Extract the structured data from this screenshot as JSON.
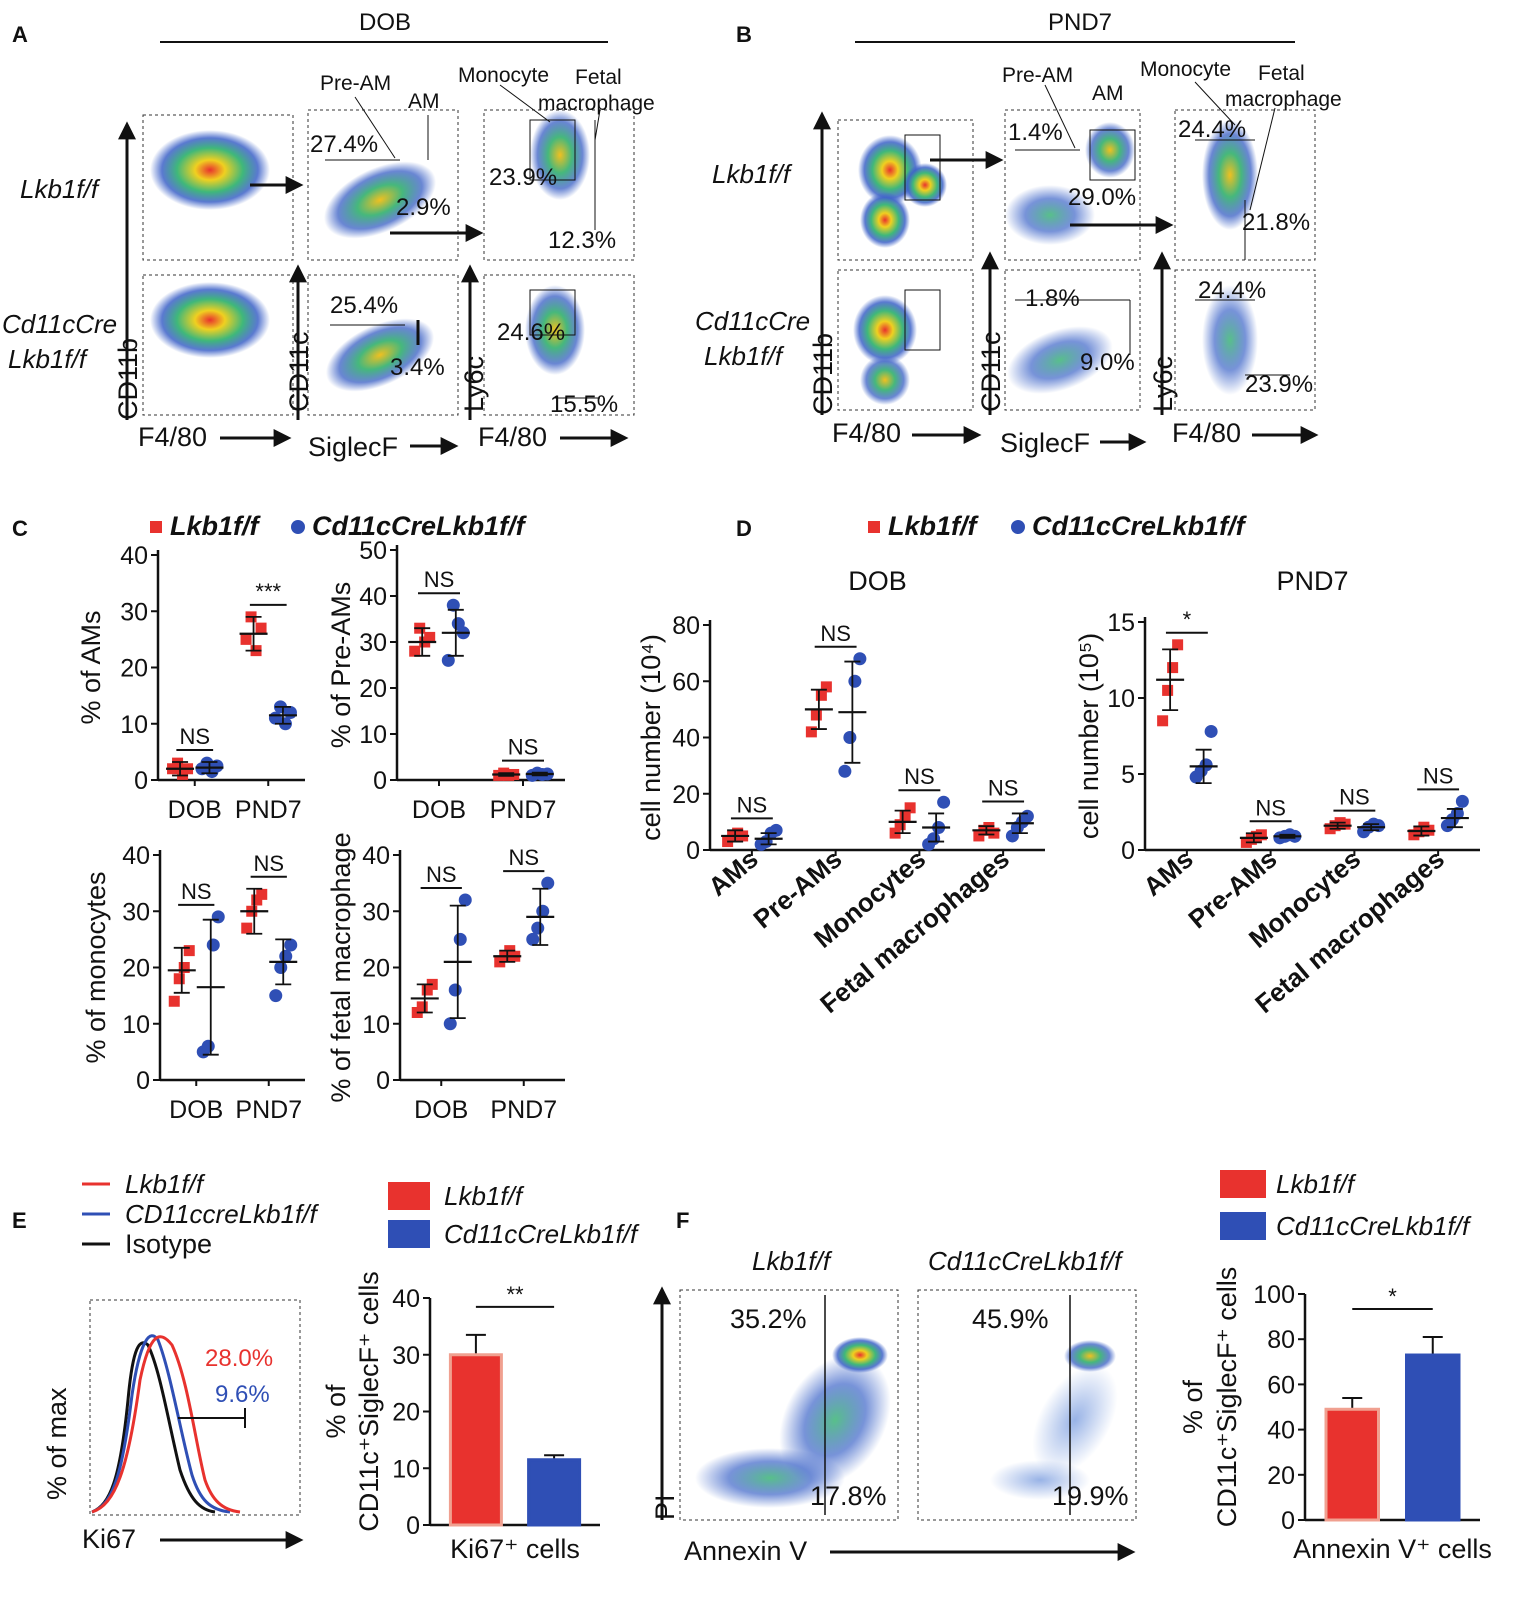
{
  "panel_labels": {
    "a": "A",
    "b": "B",
    "c": "C",
    "d": "D",
    "e": "E",
    "f": "F"
  },
  "panel_a": {
    "title": "DOB",
    "row1_label": "Lkb1f/f",
    "row2_label_line1": "Cd11cCre",
    "row2_label_line2": "Lkb1f/f",
    "axes": {
      "x1": "F4/80",
      "y1": "CD11b",
      "x2": "SiglecF",
      "y2": "CD11c",
      "x3": "F4/80",
      "y3": "Ly6c"
    },
    "gates": {
      "pre_am": "Pre-AM",
      "am": "AM",
      "monocyte": "Monocyte",
      "fetal_line1": "Fetal",
      "fetal_line2": "macrophage"
    },
    "row1": {
      "pre_am_pct": "27.4%",
      "am_pct": "2.9%",
      "mono_pct": "23.9%",
      "fetal_pct": "12.3%"
    },
    "row2": {
      "pre_am_pct": "25.4%",
      "am_pct": "3.4%",
      "mono_pct": "24.6%",
      "fetal_pct": "15.5%"
    }
  },
  "panel_b": {
    "title": "PND7",
    "row1_label": "Lkb1f/f",
    "row2_label_line1": "Cd11cCre",
    "row2_label_line2": "Lkb1f/f",
    "axes": {
      "x1": "F4/80",
      "y1": "CD11b",
      "x2": "SiglecF",
      "y2": "CD11c",
      "x3": "F4/80",
      "y3": "Ly6c"
    },
    "gates": {
      "pre_am": "Pre-AM",
      "am": "AM",
      "monocyte": "Monocyte",
      "fetal_line1": "Fetal",
      "fetal_line2": "macrophage"
    },
    "row1": {
      "pre_am_pct": "1.4%",
      "am_pct": "29.0%",
      "mono_pct": "24.4%",
      "fetal_pct": "21.8%"
    },
    "row2": {
      "pre_am_pct": "1.8%",
      "am_pct": "9.0%",
      "mono_pct": "24.4%",
      "fetal_pct": "23.9%"
    }
  },
  "legend": {
    "wt": "Lkb1f/f",
    "ko": "Cd11cCreLkb1f/f",
    "ko_e": "CD11ccreLkb1f/f",
    "isotype": "Isotype"
  },
  "colors": {
    "wt": "#e8322e",
    "ko": "#2f4fb5",
    "isotype": "#111111"
  },
  "chart_data": [
    {
      "id": "c1",
      "type": "scatter",
      "ylabel": "% of AMs",
      "ylim": [
        0,
        40
      ],
      "yticks": [
        0,
        10,
        20,
        30,
        40
      ],
      "categories": [
        "DOB",
        "PND7"
      ],
      "series": [
        {
          "name": "Lkb1f/f",
          "points": [
            [
              2,
              3,
              1,
              2
            ],
            [
              25,
              29,
              23,
              27
            ]
          ],
          "mean": [
            2,
            26
          ],
          "sd": [
            1.2,
            3
          ]
        },
        {
          "name": "Cd11cCreLkb1f/f",
          "points": [
            [
              2,
              3,
              1.5,
              2.5
            ],
            [
              11,
              13,
              10,
              12
            ]
          ],
          "mean": [
            2.2,
            11.5
          ],
          "sd": [
            1,
            1.5
          ]
        }
      ],
      "annotations": [
        "NS",
        "***"
      ]
    },
    {
      "id": "c2",
      "type": "scatter",
      "ylabel": "% of Pre-AMs",
      "ylim": [
        0,
        50
      ],
      "yticks": [
        0,
        10,
        20,
        30,
        40,
        50
      ],
      "categories": [
        "DOB",
        "PND7"
      ],
      "series": [
        {
          "name": "Lkb1f/f",
          "points": [
            [
              28,
              33,
              30,
              31
            ],
            [
              1,
              1.5,
              1,
              1.2
            ]
          ],
          "mean": [
            30,
            1.2
          ],
          "sd": [
            3,
            0.3
          ]
        },
        {
          "name": "Cd11cCreLkb1f/f",
          "points": [
            [
              26,
              38,
              34,
              32
            ],
            [
              1,
              1.5,
              1.2,
              1.3
            ]
          ],
          "mean": [
            32,
            1.3
          ],
          "sd": [
            5,
            0.3
          ]
        }
      ],
      "annotations": [
        "NS",
        "NS"
      ]
    },
    {
      "id": "c3",
      "type": "scatter",
      "ylabel": "% of monocytes",
      "ylim": [
        0,
        40
      ],
      "yticks": [
        0,
        10,
        20,
        30,
        40
      ],
      "categories": [
        "DOB",
        "PND7"
      ],
      "series": [
        {
          "name": "Lkb1f/f",
          "points": [
            [
              14,
              18,
              20,
              23
            ],
            [
              27,
              30,
              32,
              33
            ]
          ],
          "mean": [
            19.5,
            30
          ],
          "sd": [
            4,
            4
          ]
        },
        {
          "name": "Cd11cCreLkb1f/f",
          "points": [
            [
              5,
              6,
              24,
              29
            ],
            [
              15,
              20,
              22,
              24
            ]
          ],
          "mean": [
            16.5,
            21
          ],
          "sd": [
            12,
            4
          ]
        }
      ],
      "annotations": [
        "NS",
        "NS"
      ]
    },
    {
      "id": "c4",
      "type": "scatter",
      "ylabel": "% of fetal macrophage",
      "ylim": [
        0,
        40
      ],
      "yticks": [
        0,
        10,
        20,
        30,
        40
      ],
      "categories": [
        "DOB",
        "PND7"
      ],
      "series": [
        {
          "name": "Lkb1f/f",
          "points": [
            [
              12,
              13,
              16,
              17
            ],
            [
              21,
              22,
              23,
              22
            ]
          ],
          "mean": [
            14.5,
            22
          ],
          "sd": [
            2.5,
            1
          ]
        },
        {
          "name": "Cd11cCreLkb1f/f",
          "points": [
            [
              10,
              16,
              25,
              32
            ],
            [
              25,
              27,
              30,
              35
            ]
          ],
          "mean": [
            21,
            29
          ],
          "sd": [
            10,
            5
          ]
        }
      ],
      "annotations": [
        "NS",
        "NS"
      ]
    },
    {
      "id": "d1",
      "type": "scatter",
      "title": "DOB",
      "ylabel": "cell number (10⁴)",
      "ylim": [
        0,
        80
      ],
      "yticks": [
        0,
        20,
        40,
        60,
        80
      ],
      "categories": [
        "AMs",
        "Pre-AMs",
        "Monocytes",
        "Fetal macrophages"
      ],
      "series": [
        {
          "name": "Lkb1f/f",
          "points": [
            [
              3,
              5,
              6,
              5
            ],
            [
              42,
              48,
              55,
              58
            ],
            [
              6,
              9,
              12,
              15
            ],
            [
              5,
              7,
              8,
              6
            ]
          ],
          "mean": [
            5,
            50,
            10,
            7
          ],
          "sd": [
            2,
            7,
            4,
            1.5
          ]
        },
        {
          "name": "Cd11cCreLkb1f/f",
          "points": [
            [
              2,
              3,
              6,
              7
            ],
            [
              28,
              40,
              60,
              68
            ],
            [
              2,
              4,
              8,
              17
            ],
            [
              5,
              8,
              10,
              12
            ]
          ],
          "mean": [
            4,
            49,
            8,
            9.5
          ],
          "sd": [
            2,
            18,
            5,
            3.5
          ]
        }
      ],
      "annotations": [
        "NS",
        "NS",
        "NS",
        "NS"
      ]
    },
    {
      "id": "d2",
      "type": "scatter",
      "title": "PND7",
      "ylabel": "cell number (10⁵)",
      "ylim": [
        0,
        15
      ],
      "yticks": [
        0,
        5,
        10,
        15
      ],
      "categories": [
        "AMs",
        "Pre-AMs",
        "Monocytes",
        "Fetal macrophages"
      ],
      "series": [
        {
          "name": "Lkb1f/f",
          "points": [
            [
              8.5,
              10.5,
              12,
              13.5
            ],
            [
              0.5,
              0.7,
              0.9,
              1
            ],
            [
              1.4,
              1.6,
              1.8,
              1.7
            ],
            [
              1,
              1.2,
              1.5,
              1.3
            ]
          ],
          "mean": [
            11.2,
            0.8,
            1.6,
            1.25
          ],
          "sd": [
            2,
            0.3,
            0.2,
            0.3
          ]
        },
        {
          "name": "Cd11cCreLkb1f/f",
          "points": [
            [
              4.8,
              5.2,
              5.6,
              7.8
            ],
            [
              0.8,
              0.9,
              1,
              0.9
            ],
            [
              1.2,
              1.5,
              1.7,
              1.6
            ],
            [
              1.6,
              2.0,
              2.4,
              3.2
            ]
          ],
          "mean": [
            5.5,
            0.9,
            1.5,
            2.1
          ],
          "sd": [
            1.1,
            0.1,
            0.2,
            0.6
          ]
        }
      ],
      "annotations": [
        "*",
        "NS",
        "NS",
        "NS"
      ]
    },
    {
      "id": "e_hist",
      "type": "area",
      "xlabel": "Ki67",
      "ylabel": "% of max",
      "labels": [
        "28.0%",
        "9.6%"
      ],
      "series": [
        "Lkb1f/f",
        "CD11ccreLkb1f/f",
        "Isotype"
      ]
    },
    {
      "id": "e_bar",
      "type": "bar",
      "xlabel": "Ki67⁺ cells",
      "ylabel_line1": "% of",
      "ylabel_line2": "CD11c⁺SiglecF⁺ cells",
      "ylim": [
        0,
        40
      ],
      "yticks": [
        0,
        10,
        20,
        30,
        40
      ],
      "categories": [
        "Lkb1f/f",
        "Cd11cCreLkb1f/f"
      ],
      "values": [
        30,
        11.5
      ],
      "errors": [
        3.5,
        0.8
      ],
      "annotation": "**"
    },
    {
      "id": "f_flow",
      "type": "scatter",
      "xlabel": "Annexin V",
      "ylabel": "PI",
      "panels": [
        {
          "name": "Lkb1f/f",
          "upper_left": "35.2%",
          "lower_right": "17.8%"
        },
        {
          "name": "Cd11cCreLkb1f/f",
          "upper_left": "45.9%",
          "lower_right": "19.9%"
        }
      ]
    },
    {
      "id": "f_bar",
      "type": "bar",
      "xlabel": "Annexin V⁺ cells",
      "ylabel_line1": "% of",
      "ylabel_line2": "CD11c⁺SiglecF⁺ cells",
      "ylim": [
        0,
        100
      ],
      "yticks": [
        0,
        20,
        40,
        60,
        80,
        100
      ],
      "categories": [
        "Lkb1f/f",
        "Cd11cCreLkb1f/f"
      ],
      "values": [
        49,
        73
      ],
      "errors": [
        5,
        8
      ],
      "annotation": "*"
    }
  ]
}
